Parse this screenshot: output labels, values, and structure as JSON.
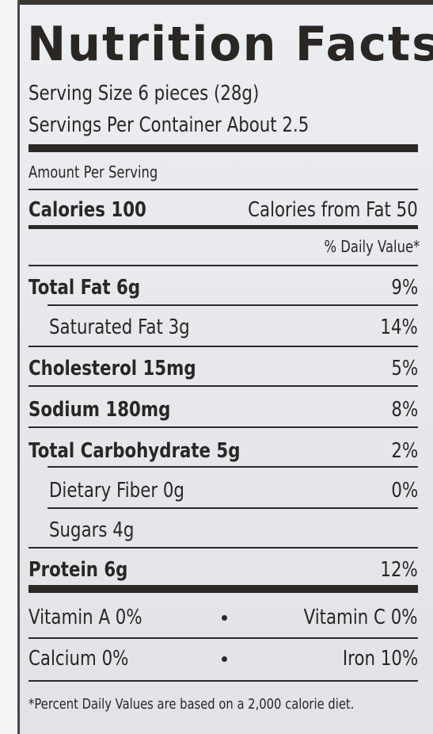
{
  "title": "Nutrition Facts",
  "serving": {
    "size": "Serving Size 6 pieces (28g)",
    "per_container": "Servings Per Container About 2.5"
  },
  "amount_per_serving": "Amount Per Serving",
  "calories": {
    "label": "Calories 100",
    "from_fat": "Calories from Fat 50"
  },
  "daily_value_header": "% Daily Value*",
  "nutrients": [
    {
      "label": "Total Fat 6g",
      "dv": "9%"
    },
    {
      "label": "Saturated Fat 3g",
      "dv": "14%"
    },
    {
      "label": "Cholesterol 15mg",
      "dv": "5%"
    },
    {
      "label": "Sodium 180mg",
      "dv": "8%"
    },
    {
      "label": "Total Carbohydrate 5g",
      "dv": "2%"
    },
    {
      "label": "Dietary Fiber 0g",
      "dv": "0%"
    },
    {
      "label": "Sugars 4g",
      "dv": ""
    },
    {
      "label": "Protein 6g",
      "dv": "12%"
    }
  ],
  "vitamins": {
    "row1": {
      "left": "Vitamin A 0%",
      "right": "Vitamin C 0%"
    },
    "row2": {
      "left": "Calcium 0%",
      "right": "Iron 10%"
    }
  },
  "footnote": "*Percent Daily Values are based on a 2,000 calorie diet."
}
